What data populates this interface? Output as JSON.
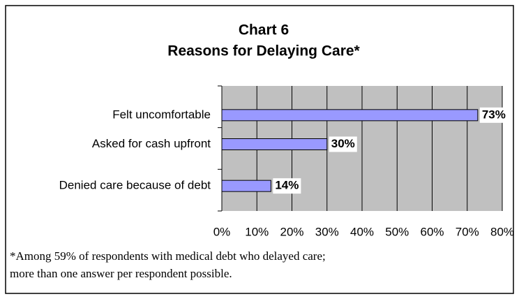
{
  "chart_data": {
    "type": "bar",
    "orientation": "horizontal",
    "title": [
      "Chart 6",
      "Reasons for Delaying Care*"
    ],
    "categories": [
      "Felt uncomfortable",
      "Asked for cash upfront",
      "Denied care because of debt"
    ],
    "values": [
      73,
      30,
      14
    ],
    "value_labels": [
      "73%",
      "30%",
      "14%"
    ],
    "color": "#9999ff",
    "xlim": [
      0,
      80
    ],
    "xticks": [
      {
        "value": 0,
        "label": "0%"
      },
      {
        "value": 10,
        "label": "10%"
      },
      {
        "value": 20,
        "label": "20%"
      },
      {
        "value": 30,
        "label": "30%"
      },
      {
        "value": 40,
        "label": "40%"
      },
      {
        "value": 50,
        "label": "50%"
      },
      {
        "value": 60,
        "label": "60%"
      },
      {
        "value": 70,
        "label": "70%"
      },
      {
        "value": 80,
        "label": "80%"
      }
    ],
    "grid": true,
    "footnote": [
      "*Among 59% of respondents with medical debt who delayed care;",
      "more than one answer per respondent possible."
    ]
  }
}
